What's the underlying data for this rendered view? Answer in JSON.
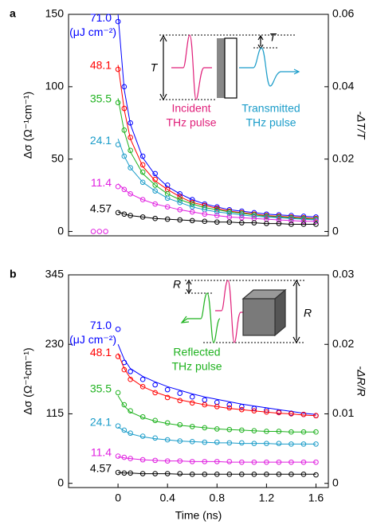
{
  "chart_data": [
    {
      "type": "scatter",
      "panel": "a",
      "y_label": "Δσ (Ω⁻¹cm⁻¹)",
      "y2_label": "-ΔT/T",
      "unit_label": "(μJ cm⁻²)",
      "annotations": [
        "T",
        "T",
        "Incident",
        "THz pulse",
        "Transmitted",
        "THz pulse"
      ],
      "xlim": [
        -0.4,
        1.7
      ],
      "ylim": [
        -3,
        150
      ],
      "yticks": [
        0,
        50,
        100,
        150
      ],
      "y2lim": [
        -0.0012,
        0.06
      ],
      "y2ticks": [
        0,
        0.02,
        0.04,
        0.06
      ],
      "x": [
        -0.2,
        -0.15,
        -0.1,
        0,
        0.05,
        0.1,
        0.2,
        0.3,
        0.4,
        0.5,
        0.6,
        0.7,
        0.8,
        0.9,
        1.0,
        1.1,
        1.2,
        1.3,
        1.4,
        1.5,
        1.6
      ],
      "series": [
        {
          "name": "71.0",
          "color": "#0000ff",
          "values": [
            null,
            null,
            null,
            145,
            100,
            75,
            52,
            40,
            32,
            26,
            22,
            19,
            17,
            15,
            14,
            13,
            12,
            11.5,
            11,
            10.5,
            10
          ],
          "fit": [
            null,
            null,
            null,
            150,
            98,
            74,
            51,
            39,
            31,
            26,
            22,
            19,
            17,
            15,
            14,
            13,
            12,
            11.5,
            11,
            10.5,
            10
          ]
        },
        {
          "name": "48.1",
          "color": "#ff0000",
          "values": [
            null,
            null,
            null,
            112,
            85,
            65,
            46,
            36,
            29,
            24,
            20,
            18,
            16,
            14,
            13,
            12,
            11,
            10.5,
            10,
            9.5,
            9
          ],
          "fit": [
            null,
            null,
            null,
            115,
            84,
            64,
            45,
            35,
            29,
            24,
            20,
            18,
            16,
            14,
            13,
            12,
            11,
            10.5,
            10,
            9.5,
            9
          ]
        },
        {
          "name": "35.5",
          "color": "#1fb21f",
          "values": [
            null,
            null,
            null,
            89,
            70,
            56,
            41,
            32,
            26,
            22,
            19,
            16.5,
            15,
            13.5,
            12.5,
            11.5,
            10.5,
            10,
            9.5,
            9,
            8.5
          ],
          "fit": [
            null,
            null,
            null,
            92,
            69,
            55,
            40,
            32,
            26,
            22,
            19,
            16.5,
            15,
            13.5,
            12.5,
            11.5,
            10.5,
            10,
            9.5,
            9,
            8.5
          ]
        },
        {
          "name": "24.1",
          "color": "#1a9cc9",
          "values": [
            null,
            null,
            null,
            60,
            52,
            44,
            34,
            28,
            23,
            20,
            17,
            15,
            13.5,
            12.5,
            11.5,
            10.5,
            10,
            9.5,
            9,
            8.5,
            8
          ],
          "fit": [
            null,
            null,
            null,
            64,
            52,
            44,
            34,
            28,
            23,
            20,
            17,
            15,
            13.5,
            12.5,
            11.5,
            10.5,
            10,
            9.5,
            9,
            8.5,
            8
          ]
        },
        {
          "name": "11.4",
          "color": "#e020e0",
          "values": [
            0,
            0,
            0,
            31,
            29,
            26,
            22,
            19,
            17,
            15,
            13.5,
            12,
            11,
            10,
            9.5,
            9,
            8.5,
            8,
            7.5,
            7,
            7
          ],
          "fit": [
            null,
            null,
            null,
            33,
            29,
            26,
            22,
            19,
            17,
            15,
            13.5,
            12,
            11,
            10,
            9.5,
            9,
            8.5,
            8,
            7.5,
            7,
            7
          ]
        },
        {
          "name": "4.57",
          "color": "#000000",
          "values": [
            null,
            null,
            null,
            13,
            12,
            11,
            10,
            9,
            8.5,
            8,
            7.5,
            7,
            6.5,
            6.5,
            6,
            6,
            5.5,
            5.5,
            5,
            5,
            5
          ],
          "fit": [
            null,
            null,
            null,
            13.5,
            12,
            11,
            10,
            9,
            8.5,
            8,
            7.5,
            7,
            6.5,
            6.5,
            6,
            6,
            5.5,
            5.5,
            5,
            5,
            5
          ]
        }
      ]
    },
    {
      "type": "scatter",
      "panel": "b",
      "x_label": "Time (ns)",
      "y_label": "Δσ (Ω⁻¹cm⁻¹)",
      "y2_label": "-ΔR/R",
      "unit_label": "(μJ cm⁻²)",
      "annotations": [
        "R",
        "R",
        "Reflected",
        "THz pulse"
      ],
      "xlim": [
        -0.4,
        1.7
      ],
      "xticks": [
        0,
        0.4,
        0.8,
        1.2,
        1.6
      ],
      "ylim": [
        -7,
        345
      ],
      "yticks": [
        0,
        115,
        230,
        345
      ],
      "y2lim": [
        -0.0006,
        0.03
      ],
      "y2ticks": [
        0,
        0.01,
        0.02,
        0.03
      ],
      "x": [
        0,
        0.05,
        0.1,
        0.2,
        0.3,
        0.4,
        0.5,
        0.6,
        0.7,
        0.8,
        0.9,
        1.0,
        1.1,
        1.2,
        1.3,
        1.4,
        1.5,
        1.6
      ],
      "series": [
        {
          "name": "71.0",
          "color": "#0000ff",
          "values": [
            255,
            200,
            185,
            172,
            163,
            155,
            149,
            143,
            138,
            134,
            130,
            127,
            124,
            121,
            118,
            116,
            114,
            112
          ],
          "fit": [
            230,
            205,
            190,
            177,
            168,
            160,
            154,
            148,
            143,
            139,
            135,
            131,
            128,
            125,
            122,
            119,
            116,
            114
          ]
        },
        {
          "name": "48.1",
          "color": "#ff0000",
          "values": [
            210,
            188,
            172,
            160,
            150,
            142,
            137,
            133,
            130,
            127,
            125,
            122,
            120,
            118,
            117,
            115,
            114,
            112
          ],
          "fit": [
            215,
            190,
            174,
            160,
            151,
            144,
            138,
            134,
            130,
            127,
            124,
            122,
            120,
            118,
            116,
            115,
            113,
            112
          ]
        },
        {
          "name": "35.5",
          "color": "#1fb21f",
          "values": [
            150,
            130,
            120,
            110,
            104,
            100,
            97,
            94,
            92,
            90,
            89,
            88,
            87,
            86,
            86,
            85,
            85,
            85
          ],
          "fit": [
            145,
            128,
            118,
            109,
            103,
            99,
            96,
            94,
            92,
            90,
            89,
            88,
            87,
            86,
            86,
            85,
            85,
            85
          ]
        },
        {
          "name": "24.1",
          "color": "#1a9cc9",
          "values": [
            95,
            88,
            83,
            78,
            75,
            72,
            70,
            69,
            68,
            68,
            67,
            67,
            66,
            66,
            66,
            65,
            65,
            65
          ],
          "fit": [
            93,
            87,
            82,
            77,
            74,
            72,
            70,
            69,
            68,
            67,
            67,
            66,
            66,
            66,
            65,
            65,
            65,
            65
          ]
        },
        {
          "name": "11.4",
          "color": "#e020e0",
          "values": [
            45,
            43,
            41,
            39,
            38,
            37,
            37,
            36,
            36,
            36,
            36,
            35,
            35,
            35,
            35,
            35,
            35,
            35
          ],
          "fit": [
            44,
            42,
            41,
            39,
            38,
            37,
            37,
            36,
            36,
            36,
            35,
            35,
            35,
            35,
            35,
            35,
            35,
            35
          ]
        },
        {
          "name": "4.57",
          "color": "#000000",
          "values": [
            18,
            17,
            17,
            16,
            16,
            16,
            16,
            15,
            15,
            15,
            15,
            15,
            15,
            15,
            15,
            15,
            15,
            14
          ],
          "fit": [
            18,
            17,
            17,
            16,
            16,
            16,
            15,
            15,
            15,
            15,
            15,
            15,
            15,
            15,
            15,
            15,
            15,
            15
          ]
        }
      ]
    }
  ]
}
